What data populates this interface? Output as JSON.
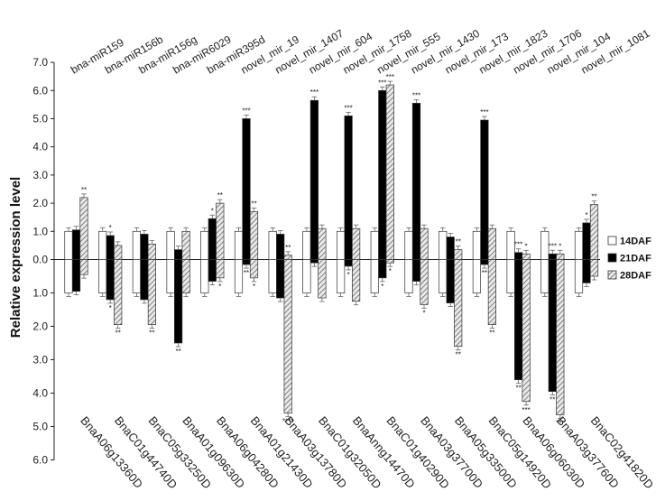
{
  "chart_data": {
    "type": "bar",
    "ylabel": "Relative expression level",
    "y_ticks_up": [
      "7.0",
      "6.0",
      "5.0",
      "4.0",
      "3.0",
      "2.0",
      "1.0",
      "0.0"
    ],
    "y_ticks_down": [
      "1.0",
      "2.0",
      "3.0",
      "4.0",
      "5.0",
      "6.0"
    ],
    "ylim_up": [
      0,
      7
    ],
    "ylim_down": [
      0,
      6
    ],
    "mirnas": [
      "bna-miR159",
      "bna-miR156b",
      "bna-miR156g",
      "bna-miR6029",
      "bna-miR395d",
      "novel_mir_19",
      "novel_mir_1407",
      "novel_mir_604",
      "novel_mir_1758",
      "novel_mir_555",
      "novel_mir_1430",
      "novel_mir_173",
      "novel_mir_1823",
      "novel_mir_1706",
      "novel_mir_104",
      "novel_mir_1081"
    ],
    "genes": [
      "BnaA06g13360D",
      "BnaC01g44740D",
      "BnaC05g33250D",
      "BnaA01g09630D",
      "BnaA06g04280D",
      "BnaA01g21430D",
      "BnaA03g13780D",
      "BnaC01g32050D",
      "BnaAnng14470D",
      "BnaC01g40290D",
      "BnaA03g37700D",
      "BnaA05g33500D",
      "BnaC05g14920D",
      "BnaA06g06030D",
      "BnaA03g37760D",
      "BnaC02g41820D"
    ],
    "legend": [
      "14DAF",
      "21DAF",
      "28DAF"
    ],
    "series": [
      {
        "name": "14DAF",
        "mirna": [
          1.0,
          1.0,
          1.0,
          1.0,
          1.0,
          1.0,
          1.0,
          1.0,
          1.0,
          1.0,
          1.0,
          1.0,
          1.0,
          1.0,
          1.0,
          1.0
        ],
        "gene": [
          1.0,
          1.0,
          1.0,
          1.0,
          1.0,
          1.0,
          1.0,
          1.0,
          1.0,
          1.0,
          1.0,
          1.0,
          1.0,
          1.0,
          1.0,
          1.0
        ]
      },
      {
        "name": "21DAF",
        "mirna": [
          1.05,
          0.85,
          0.9,
          0.35,
          1.45,
          5.0,
          0.9,
          5.65,
          5.1,
          6.0,
          5.55,
          0.8,
          4.95,
          0.25,
          0.2,
          1.3
        ],
        "gene": [
          0.95,
          1.2,
          1.2,
          2.5,
          0.65,
          0.15,
          1.15,
          0.1,
          0.2,
          0.55,
          0.65,
          1.3,
          0.15,
          3.6,
          3.95,
          0.7
        ]
      },
      {
        "name": "28DAF",
        "mirna": [
          2.2,
          0.5,
          0.55,
          1.0,
          2.0,
          1.7,
          0.15,
          1.1,
          1.1,
          6.2,
          1.1,
          0.35,
          1.1,
          0.2,
          0.2,
          1.95
        ],
        "gene": [
          0.45,
          1.95,
          1.95,
          1.0,
          0.55,
          0.55,
          4.6,
          1.15,
          1.25,
          0.1,
          1.35,
          2.6,
          1.95,
          4.25,
          4.65,
          0.5
        ]
      }
    ],
    "sig_up": [
      [
        "",
        "",
        "**"
      ],
      [
        "",
        "*",
        ""
      ],
      [
        "",
        "",
        ""
      ],
      [
        "",
        "",
        ""
      ],
      [
        "",
        "*",
        "**"
      ],
      [
        "",
        "***",
        "**"
      ],
      [
        "",
        "",
        "**"
      ],
      [
        "",
        "***",
        ""
      ],
      [
        "",
        "***",
        ""
      ],
      [
        "",
        "***",
        "***"
      ],
      [
        "",
        "***",
        ""
      ],
      [
        "",
        "",
        "**"
      ],
      [
        "",
        "***",
        ""
      ],
      [
        "",
        "***",
        "*"
      ],
      [
        "",
        "***",
        "*"
      ],
      [
        "",
        "*",
        "**"
      ]
    ],
    "sig_down": [
      [
        "",
        "",
        ""
      ],
      [
        "",
        "*",
        "**"
      ],
      [
        "",
        "",
        "**"
      ],
      [
        "",
        "**",
        ""
      ],
      [
        "",
        "",
        "*"
      ],
      [
        "",
        "**",
        "*"
      ],
      [
        "",
        "",
        "****"
      ],
      [
        "",
        "",
        ""
      ],
      [
        "",
        "*",
        ""
      ],
      [
        "",
        "*",
        "*"
      ],
      [
        "",
        "",
        "*"
      ],
      [
        "",
        "",
        "**"
      ],
      [
        "",
        "**",
        "**"
      ],
      [
        "",
        "**",
        "***"
      ],
      [
        "",
        "**",
        "***"
      ],
      [
        "",
        "",
        ""
      ]
    ],
    "grid": false,
    "legend_position": "right"
  }
}
